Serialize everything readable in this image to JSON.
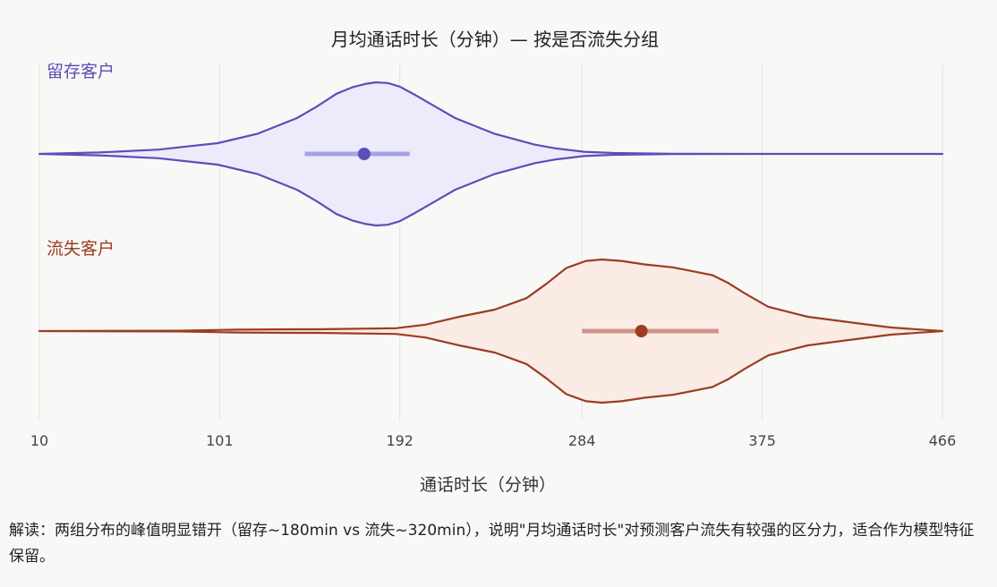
{
  "chart_data": {
    "type": "violin",
    "title": "月均通话时长（分钟）— 按是否流失分组",
    "xlabel": "通话时长（分钟）",
    "ylabel": "",
    "xlim": [
      10,
      466
    ],
    "x_ticks": [
      "10",
      "101",
      "192",
      "284",
      "375",
      "466"
    ],
    "x_tick_values": [
      10,
      101,
      192,
      284,
      375,
      466
    ],
    "grid": true,
    "series": [
      {
        "name": "留存客户",
        "color": "#5b4fb8",
        "fill": "#ecebfb",
        "iqr_color": "#a9a2e0",
        "median": 174,
        "iqr": [
          144,
          197
        ],
        "density": [
          [
            10,
            0.0
          ],
          [
            40,
            0.02
          ],
          [
            70,
            0.06
          ],
          [
            100,
            0.15
          ],
          [
            120,
            0.28
          ],
          [
            140,
            0.5
          ],
          [
            150,
            0.66
          ],
          [
            160,
            0.84
          ],
          [
            168,
            0.93
          ],
          [
            175,
            0.98
          ],
          [
            180,
            1.0
          ],
          [
            186,
            0.99
          ],
          [
            192,
            0.94
          ],
          [
            200,
            0.82
          ],
          [
            210,
            0.66
          ],
          [
            220,
            0.5
          ],
          [
            240,
            0.28
          ],
          [
            260,
            0.13
          ],
          [
            270,
            0.08
          ],
          [
            285,
            0.03
          ],
          [
            300,
            0.012
          ],
          [
            330,
            0.003
          ],
          [
            370,
            0.0
          ],
          [
            466,
            0.0
          ]
        ]
      },
      {
        "name": "流失客户",
        "color": "#9b3d22",
        "fill": "#fbebe5",
        "iqr_color": "#cf958a",
        "median": 314,
        "iqr": [
          284,
          353
        ],
        "density": [
          [
            10,
            0.0
          ],
          [
            80,
            0.005
          ],
          [
            110,
            0.02
          ],
          [
            140,
            0.025
          ],
          [
            150,
            0.025
          ],
          [
            190,
            0.04
          ],
          [
            205,
            0.09
          ],
          [
            222,
            0.2
          ],
          [
            240,
            0.3
          ],
          [
            256,
            0.46
          ],
          [
            266,
            0.66
          ],
          [
            276,
            0.88
          ],
          [
            286,
            0.98
          ],
          [
            294,
            1.0
          ],
          [
            304,
            0.98
          ],
          [
            316,
            0.93
          ],
          [
            330,
            0.89
          ],
          [
            350,
            0.78
          ],
          [
            358,
            0.67
          ],
          [
            366,
            0.53
          ],
          [
            378,
            0.34
          ],
          [
            398,
            0.2
          ],
          [
            420,
            0.12
          ],
          [
            440,
            0.05
          ],
          [
            466,
            0.0
          ]
        ]
      }
    ]
  },
  "note": {
    "text": "解读：两组分布的峰值明显错开（留存~180min vs 流失~320min），说明\"月均通话时长\"对预测客户流失有较强的区分力，适合作为模型特征保留。"
  }
}
